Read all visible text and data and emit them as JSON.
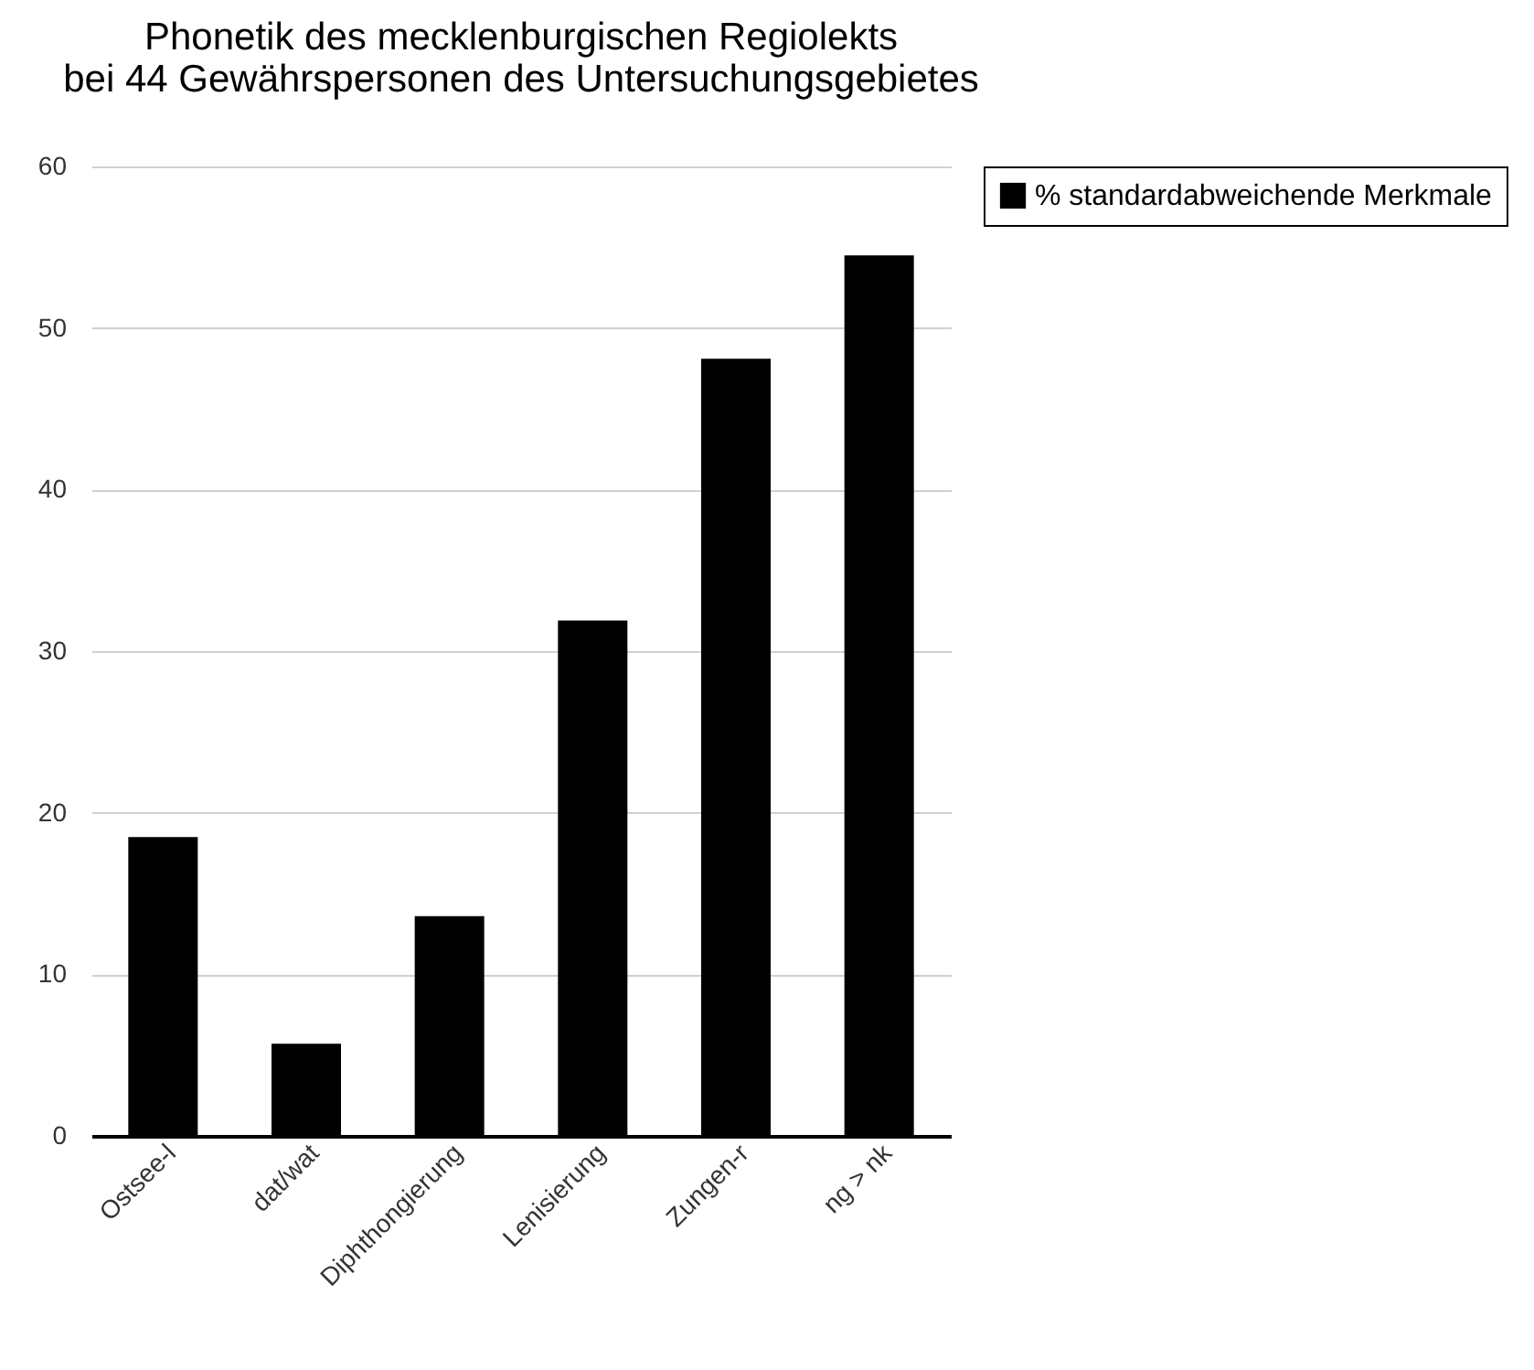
{
  "chart_data": {
    "type": "bar",
    "title": "Phonetik des mecklenburgischen Regiolekts\nbei 44 Gewährspersonen des Untersuchungsgebietes",
    "categories": [
      "Ostsee-l",
      "dat/wat",
      "Diphthongierung",
      "Lenisierung",
      "Zungen-r",
      "ng > nk"
    ],
    "series": [
      {
        "name": "% standardabweichende Merkmale",
        "color": "#000000",
        "values": [
          18.5,
          5.7,
          13.6,
          31.9,
          48.1,
          54.5
        ]
      }
    ],
    "ylim": [
      0,
      60
    ],
    "yticks": [
      0,
      10,
      20,
      30,
      40,
      50,
      60
    ],
    "grid": "y",
    "legend": "right"
  }
}
